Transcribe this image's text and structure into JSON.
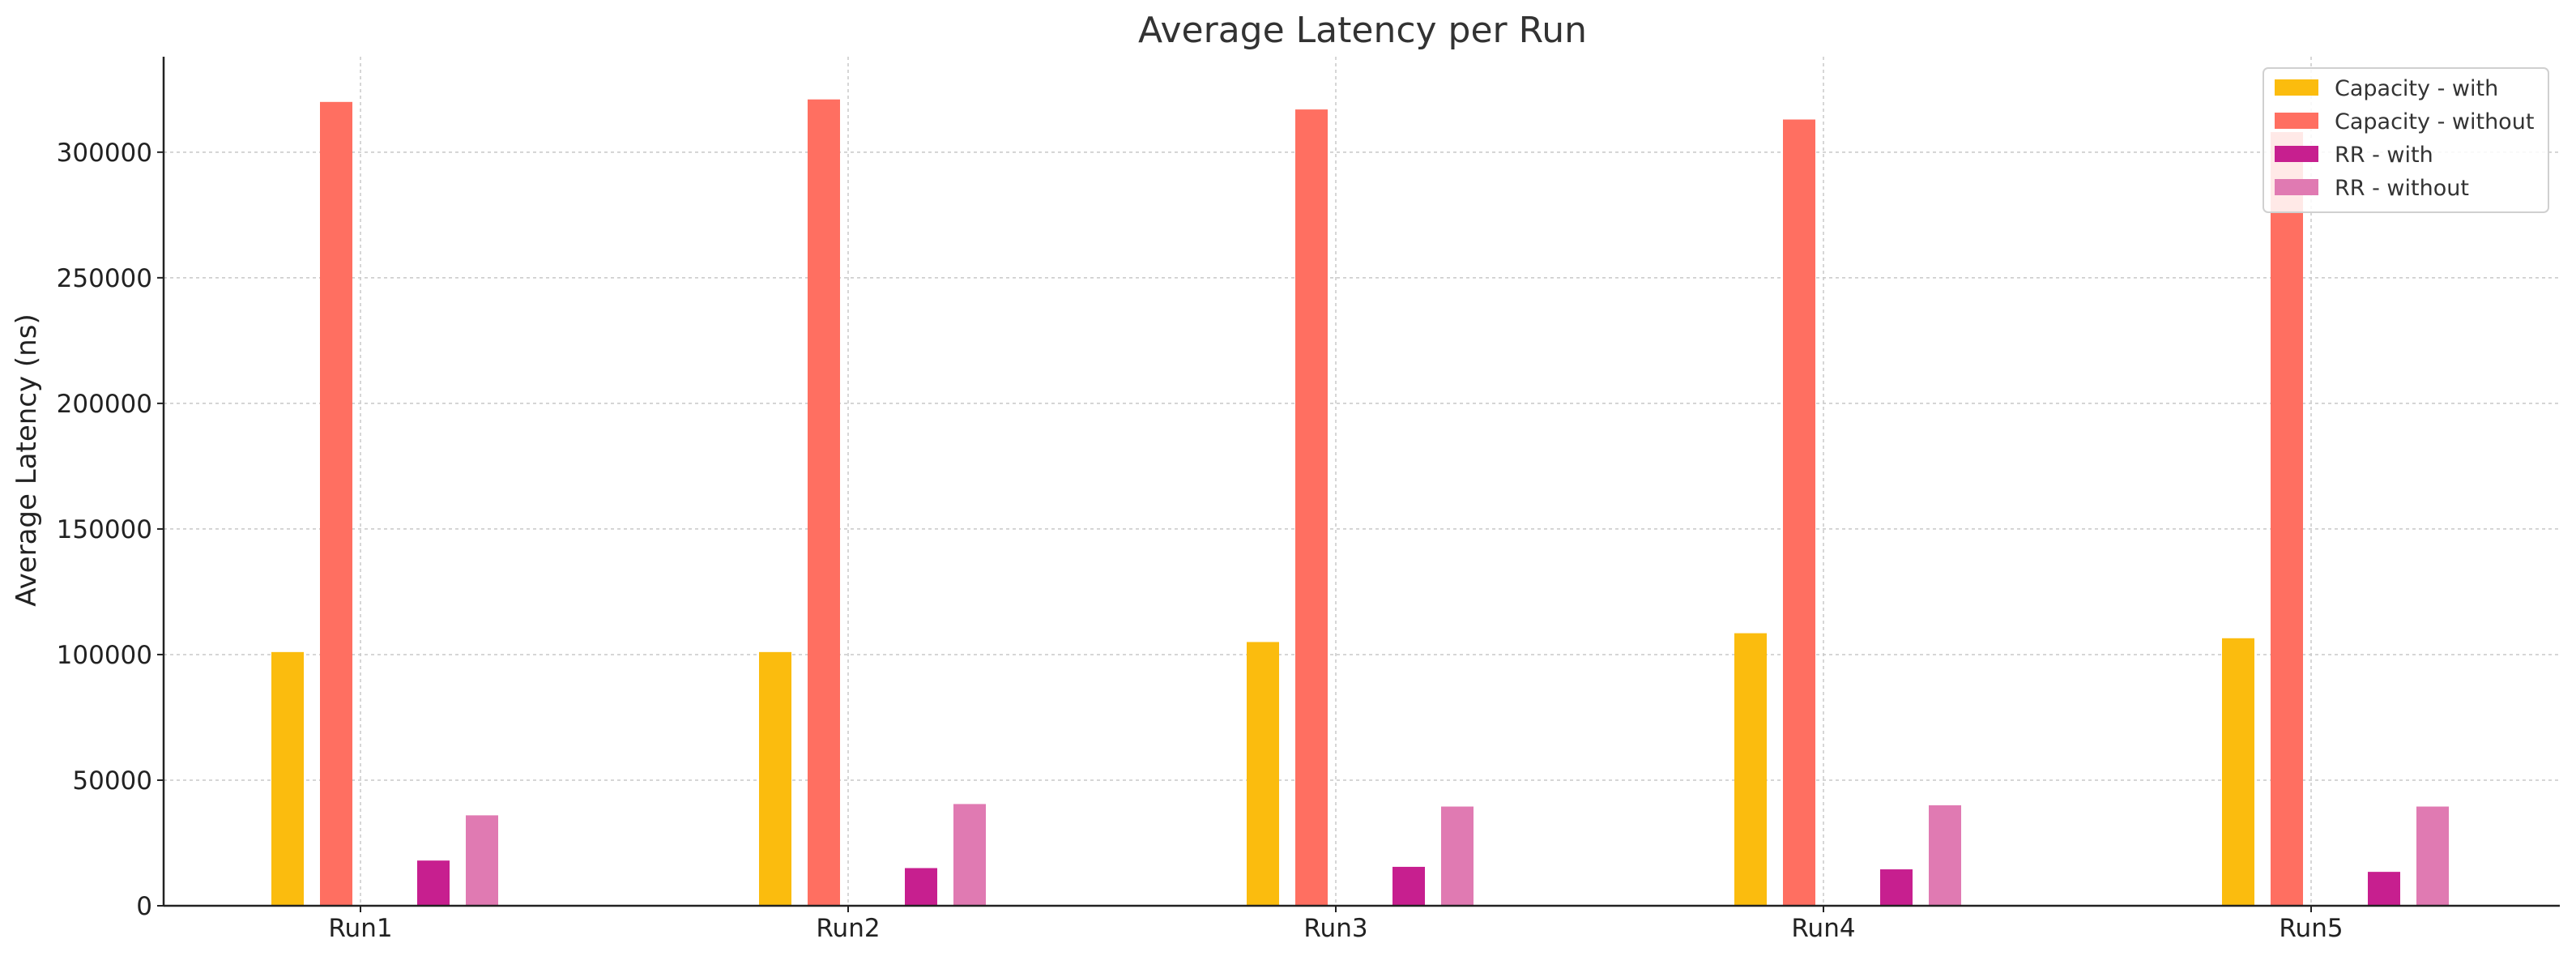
{
  "chart_data": {
    "type": "bar",
    "title": "Average Latency per Run",
    "xlabel": "",
    "ylabel": "Average Latency (ns)",
    "categories": [
      "Run1",
      "Run2",
      "Run3",
      "Run4",
      "Run5"
    ],
    "ylim": [
      0,
      338000
    ],
    "yticks": [
      "0",
      "50000",
      "100000",
      "150000",
      "200000",
      "250000",
      "300000"
    ],
    "ytick_values": [
      0,
      50000,
      100000,
      150000,
      200000,
      250000,
      300000
    ],
    "grid": true,
    "legend_position": "top-right",
    "series": [
      {
        "name": "Capacity - with",
        "color": "#FBBC0E",
        "values": [
          101000,
          101000,
          105000,
          108500,
          106500
        ]
      },
      {
        "name": "Capacity - without",
        "color": "#FF6F61",
        "values": [
          320000,
          321000,
          317000,
          313000,
          308000
        ]
      },
      {
        "name": "RR - with",
        "color": "#C71F8F",
        "values": [
          18000,
          15000,
          15500,
          14500,
          13500
        ]
      },
      {
        "name": "RR - without",
        "color": "#E07AB2",
        "values": [
          36000,
          40500,
          39500,
          40000,
          39500
        ]
      }
    ]
  }
}
